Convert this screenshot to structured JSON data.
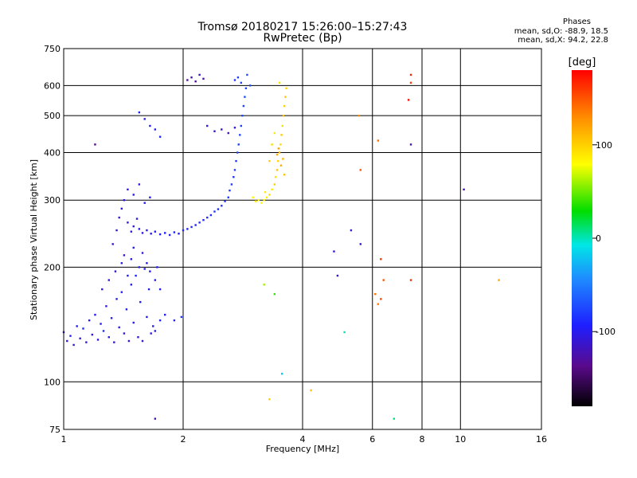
{
  "chart_data": {
    "type": "scatter",
    "title": "Tromsø 20180217 15:26:00–15:27:43",
    "subtitle": "RwPretec (Bp)",
    "xlabel": "Frequency [MHz]",
    "ylabel": "Stationary phase Virtual Height [km]",
    "xscale": "log",
    "yscale": "log",
    "xlim": [
      1,
      16
    ],
    "ylim": [
      75,
      750
    ],
    "xticks": [
      1,
      2,
      4,
      6,
      8,
      10,
      16
    ],
    "xtick_labels": [
      "1",
      "2",
      "4",
      "6",
      "8",
      "10",
      "16"
    ],
    "yticks": [
      75,
      100,
      200,
      300,
      400,
      500,
      600,
      750
    ],
    "ytick_labels": [
      "75",
      "100",
      "200",
      "300",
      "400",
      "500",
      "600",
      "750"
    ],
    "grid": true,
    "colorbar": {
      "label": "[deg]",
      "range": [
        -180,
        180
      ],
      "ticks": [
        -100,
        0,
        100
      ],
      "tick_labels": [
        "-100",
        "0",
        "100"
      ]
    },
    "phase_stats": {
      "heading": "Phases",
      "o_line": "mean, sd,O: -88.9, 18.5",
      "x_line": "mean, sd,X:  94.2, 22.8"
    },
    "series": [
      {
        "mode": "O",
        "points": [
          [
            1.0,
            135,
            -105
          ],
          [
            1.02,
            128,
            -110
          ],
          [
            1.04,
            132,
            -95
          ],
          [
            1.06,
            125,
            -115
          ],
          [
            1.08,
            140,
            -100
          ],
          [
            1.1,
            130,
            -108
          ],
          [
            1.12,
            138,
            -90
          ],
          [
            1.14,
            127,
            -112
          ],
          [
            1.16,
            145,
            -98
          ],
          [
            1.18,
            133,
            -104
          ],
          [
            1.2,
            150,
            -96
          ],
          [
            1.22,
            129,
            -110
          ],
          [
            1.24,
            142,
            -102
          ],
          [
            1.26,
            136,
            -88
          ],
          [
            1.28,
            158,
            -100
          ],
          [
            1.3,
            131,
            -106
          ],
          [
            1.32,
            147,
            -94
          ],
          [
            1.34,
            127,
            -114
          ],
          [
            1.36,
            165,
            -99
          ],
          [
            1.38,
            139,
            -103
          ],
          [
            1.4,
            172,
            -92
          ],
          [
            1.42,
            134,
            -108
          ],
          [
            1.44,
            155,
            -97
          ],
          [
            1.46,
            128,
            -111
          ],
          [
            1.48,
            180,
            -95
          ],
          [
            1.5,
            143,
            -101
          ],
          [
            1.52,
            190,
            -93
          ],
          [
            1.54,
            131,
            -107
          ],
          [
            1.56,
            162,
            -98
          ],
          [
            1.58,
            128,
            -112
          ],
          [
            1.6,
            198,
            -96
          ],
          [
            1.62,
            148,
            -102
          ],
          [
            1.64,
            175,
            -94
          ],
          [
            1.66,
            134,
            -105
          ],
          [
            1.68,
            140,
            -98
          ],
          [
            1.7,
            136,
            -100
          ],
          [
            1.75,
            145,
            -92
          ],
          [
            1.8,
            150,
            -95
          ],
          [
            1.9,
            145,
            -90
          ],
          [
            1.98,
            148,
            -82
          ],
          [
            1.25,
            175,
            -108
          ],
          [
            1.3,
            185,
            -104
          ],
          [
            1.35,
            195,
            -110
          ],
          [
            1.4,
            205,
            -100
          ],
          [
            1.42,
            215,
            -106
          ],
          [
            1.45,
            190,
            -102
          ],
          [
            1.48,
            210,
            -96
          ],
          [
            1.5,
            225,
            -104
          ],
          [
            1.55,
            200,
            -99
          ],
          [
            1.58,
            218,
            -107
          ],
          [
            1.62,
            205,
            -97
          ],
          [
            1.65,
            195,
            -103
          ],
          [
            1.7,
            185,
            -101
          ],
          [
            1.72,
            200,
            -95
          ],
          [
            1.75,
            175,
            -98
          ],
          [
            1.33,
            230,
            -112
          ],
          [
            1.36,
            250,
            -108
          ],
          [
            1.38,
            270,
            -110
          ],
          [
            1.4,
            285,
            -106
          ],
          [
            1.42,
            300,
            -104
          ],
          [
            1.45,
            262,
            -109
          ],
          [
            1.48,
            248,
            -105
          ],
          [
            1.5,
            256,
            -107
          ],
          [
            1.53,
            268,
            -103
          ],
          [
            1.55,
            252,
            -101
          ],
          [
            1.58,
            246,
            -104
          ],
          [
            1.62,
            250,
            -99
          ],
          [
            1.66,
            245,
            -102
          ],
          [
            1.7,
            248,
            -97
          ],
          [
            1.75,
            244,
            -100
          ],
          [
            1.8,
            246,
            -95
          ],
          [
            1.85,
            243,
            -98
          ],
          [
            1.9,
            247,
            -93
          ],
          [
            1.95,
            245,
            -96
          ],
          [
            2.0,
            250,
            -91
          ],
          [
            2.05,
            252,
            -94
          ],
          [
            2.1,
            255,
            -89
          ],
          [
            2.15,
            258,
            -92
          ],
          [
            2.2,
            262,
            -88
          ],
          [
            2.25,
            266,
            -90
          ],
          [
            2.3,
            270,
            -85
          ],
          [
            2.35,
            274,
            -88
          ],
          [
            2.4,
            280,
            -84
          ],
          [
            2.45,
            284,
            -86
          ],
          [
            2.5,
            290,
            -82
          ],
          [
            2.55,
            298,
            -85
          ],
          [
            2.6,
            305,
            -80
          ],
          [
            2.62,
            318,
            -83
          ],
          [
            2.65,
            330,
            -79
          ],
          [
            2.68,
            345,
            -82
          ],
          [
            2.7,
            360,
            -78
          ],
          [
            2.72,
            380,
            -81
          ],
          [
            2.74,
            400,
            -77
          ],
          [
            2.76,
            420,
            -80
          ],
          [
            2.78,
            445,
            -76
          ],
          [
            2.8,
            470,
            -79
          ],
          [
            2.82,
            500,
            -75
          ],
          [
            2.84,
            530,
            -78
          ],
          [
            2.86,
            560,
            -74
          ],
          [
            2.88,
            590,
            -77
          ],
          [
            2.8,
            610,
            -76
          ],
          [
            2.75,
            630,
            -80
          ],
          [
            2.7,
            620,
            -84
          ],
          [
            2.9,
            640,
            -72
          ],
          [
            2.95,
            600,
            -74
          ],
          [
            1.45,
            320,
            -106
          ],
          [
            1.5,
            310,
            -102
          ],
          [
            1.55,
            330,
            -104
          ],
          [
            1.6,
            295,
            -100
          ],
          [
            1.65,
            305,
            -98
          ],
          [
            1.55,
            510,
            -95
          ],
          [
            1.6,
            490,
            -98
          ],
          [
            1.65,
            470,
            -96
          ],
          [
            1.7,
            460,
            -99
          ],
          [
            1.75,
            440,
            -92
          ],
          [
            2.05,
            620,
            -130
          ],
          [
            2.1,
            630,
            -125
          ],
          [
            2.15,
            615,
            -128
          ],
          [
            2.2,
            640,
            -120
          ],
          [
            2.25,
            625,
            -126
          ],
          [
            2.3,
            470,
            -110
          ],
          [
            2.4,
            455,
            -112
          ],
          [
            2.5,
            460,
            -115
          ],
          [
            2.6,
            450,
            -118
          ],
          [
            2.7,
            465,
            -113
          ],
          [
            1.2,
            420,
            -140
          ],
          [
            1.7,
            80,
            -120
          ],
          [
            5.6,
            230,
            -110
          ],
          [
            5.3,
            250,
            -105
          ],
          [
            4.9,
            190,
            -115
          ],
          [
            4.8,
            220,
            -108
          ],
          [
            10.2,
            320,
            -130
          ],
          [
            7.5,
            420,
            -120
          ]
        ]
      },
      {
        "mode": "X",
        "points": [
          [
            3.2,
            300,
            90
          ],
          [
            3.25,
            305,
            85
          ],
          [
            3.3,
            310,
            95
          ],
          [
            3.35,
            320,
            88
          ],
          [
            3.4,
            330,
            100
          ],
          [
            3.42,
            345,
            92
          ],
          [
            3.45,
            360,
            105
          ],
          [
            3.47,
            380,
            98
          ],
          [
            3.5,
            400,
            110
          ],
          [
            3.52,
            420,
            96
          ],
          [
            3.54,
            445,
            102
          ],
          [
            3.56,
            470,
            94
          ],
          [
            3.58,
            500,
            108
          ],
          [
            3.6,
            530,
            99
          ],
          [
            3.62,
            560,
            104
          ],
          [
            3.64,
            590,
            97
          ],
          [
            3.5,
            610,
            93
          ],
          [
            3.4,
            450,
            88
          ],
          [
            3.35,
            420,
            95
          ],
          [
            3.3,
            380,
            101
          ],
          [
            3.45,
            395,
            115
          ],
          [
            3.48,
            410,
            120
          ],
          [
            3.53,
            370,
            118
          ],
          [
            3.57,
            385,
            112
          ],
          [
            3.6,
            350,
            105
          ],
          [
            3.15,
            295,
            80
          ],
          [
            3.1,
            300,
            82
          ],
          [
            3.05,
            298,
            86
          ],
          [
            3.0,
            305,
            78
          ],
          [
            3.22,
            315,
            88
          ],
          [
            3.3,
            90,
            100
          ],
          [
            4.2,
            95,
            105
          ],
          [
            5.6,
            360,
            150
          ],
          [
            5.55,
            500,
            130
          ],
          [
            6.2,
            430,
            140
          ],
          [
            6.3,
            210,
            160
          ],
          [
            6.4,
            185,
            150
          ],
          [
            6.1,
            170,
            140
          ],
          [
            6.2,
            160,
            135
          ],
          [
            6.3,
            165,
            155
          ],
          [
            7.5,
            640,
            170
          ],
          [
            7.4,
            550,
            175
          ],
          [
            7.5,
            610,
            160
          ],
          [
            7.5,
            185,
            165
          ],
          [
            12.5,
            185,
            120
          ],
          [
            3.4,
            170,
            40
          ],
          [
            3.55,
            105,
            -20
          ],
          [
            6.8,
            80,
            10
          ],
          [
            5.1,
            135,
            0
          ],
          [
            3.2,
            180,
            60
          ]
        ]
      }
    ]
  }
}
